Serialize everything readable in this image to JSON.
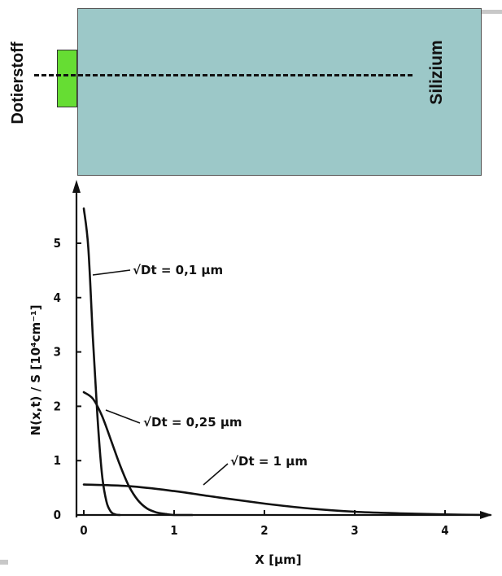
{
  "diagram": {
    "dopant_label": "Dotierstoff",
    "silicon_label": "Silizium",
    "dopant_color": "#66dd33",
    "silicon_color": "#9cc8c8"
  },
  "chart_data": {
    "type": "line",
    "xlabel": "X [µm]",
    "ylabel": "N(x,t) / S [10⁴cm⁻¹]",
    "xlim": [
      0,
      4.5
    ],
    "ylim": [
      0,
      5.9
    ],
    "x_ticks": [
      "0",
      "1",
      "2",
      "3",
      "4"
    ],
    "y_ticks": [
      "0",
      "1",
      "2",
      "3",
      "4",
      "5"
    ],
    "grid": false,
    "series": [
      {
        "name": "√Dt = 0,1 µm",
        "sqrt_Dt_um": 0.1,
        "x": [
          0,
          0.05,
          0.1,
          0.15,
          0.2,
          0.25,
          0.3,
          0.35,
          0.4
        ],
        "y": [
          5.64,
          4.92,
          3.27,
          1.83,
          0.77,
          0.25,
          0.06,
          0.01,
          0.0
        ]
      },
      {
        "name": "√Dt = 0,25 µm",
        "sqrt_Dt_um": 0.25,
        "x": [
          0,
          0.1,
          0.2,
          0.3,
          0.4,
          0.5,
          0.6,
          0.7,
          0.8,
          0.9,
          1.0,
          1.2
        ],
        "y": [
          2.26,
          2.14,
          1.83,
          1.38,
          0.92,
          0.53,
          0.27,
          0.12,
          0.05,
          0.02,
          0.0,
          0.0
        ]
      },
      {
        "name": "√Dt = 1 µm",
        "sqrt_Dt_um": 1,
        "x": [
          0,
          0.5,
          1.0,
          1.5,
          2.0,
          2.5,
          3.0,
          3.5,
          4.0,
          4.5
        ],
        "y": [
          0.56,
          0.53,
          0.44,
          0.32,
          0.21,
          0.12,
          0.06,
          0.03,
          0.01,
          0.0
        ]
      }
    ],
    "annotations": [
      {
        "text": "√Dt = 0,1 µm"
      },
      {
        "text": "√Dt = 0,25 µm"
      },
      {
        "text": "√Dt = 1 µm"
      }
    ]
  }
}
